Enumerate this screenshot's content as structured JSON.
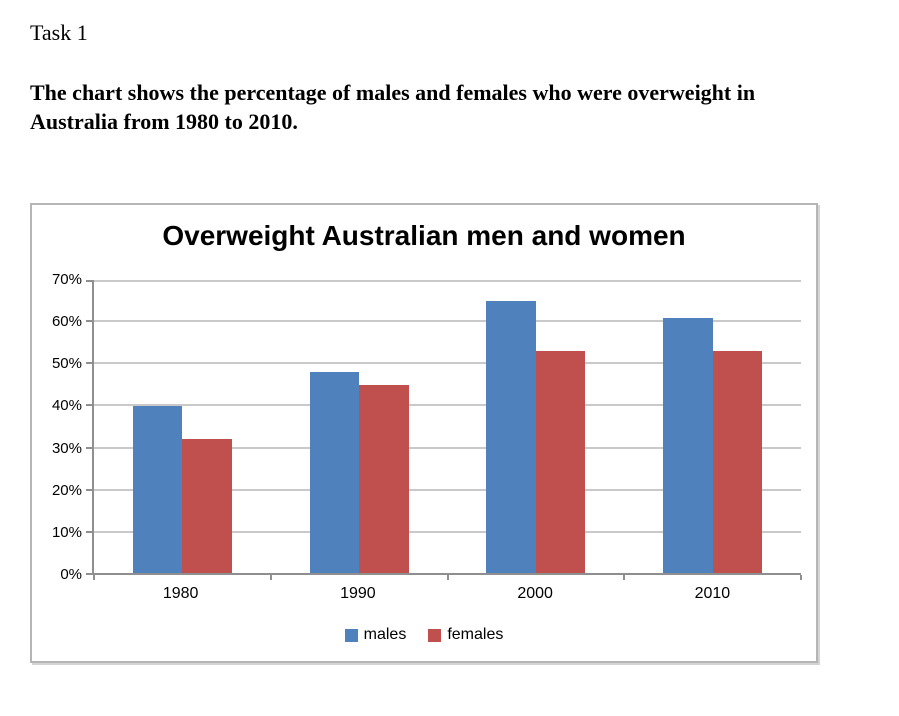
{
  "document": {
    "task_label": "Task 1",
    "prompt": "The chart shows the percentage of males and females who were overweight in Australia from 1980 to 2010."
  },
  "chart_data": {
    "type": "bar",
    "title": "Overweight Australian men and women",
    "categories": [
      "1980",
      "1990",
      "2000",
      "2010"
    ],
    "series": [
      {
        "name": "males",
        "color": "#4F81BD",
        "values": [
          40,
          48,
          65,
          61
        ]
      },
      {
        "name": "females",
        "color": "#C0504D",
        "values": [
          32,
          45,
          53,
          53
        ]
      }
    ],
    "value_unit": "%",
    "ylim": [
      0,
      70
    ],
    "yticks": [
      {
        "label": "70%",
        "value": 70
      },
      {
        "label": "60%",
        "value": 60
      },
      {
        "label": "50%",
        "value": 50
      },
      {
        "label": "40%",
        "value": 40
      },
      {
        "label": "30%",
        "value": 30
      },
      {
        "label": "20%",
        "value": 20
      },
      {
        "label": "10%",
        "value": 10
      },
      {
        "label": "0%",
        "value": 0
      }
    ],
    "grid": true,
    "legend_position": "bottom",
    "colors": {
      "gridline": "#c9c9c9",
      "axis": "#8f8f8f",
      "chart_border": "#b5b5b5"
    }
  }
}
